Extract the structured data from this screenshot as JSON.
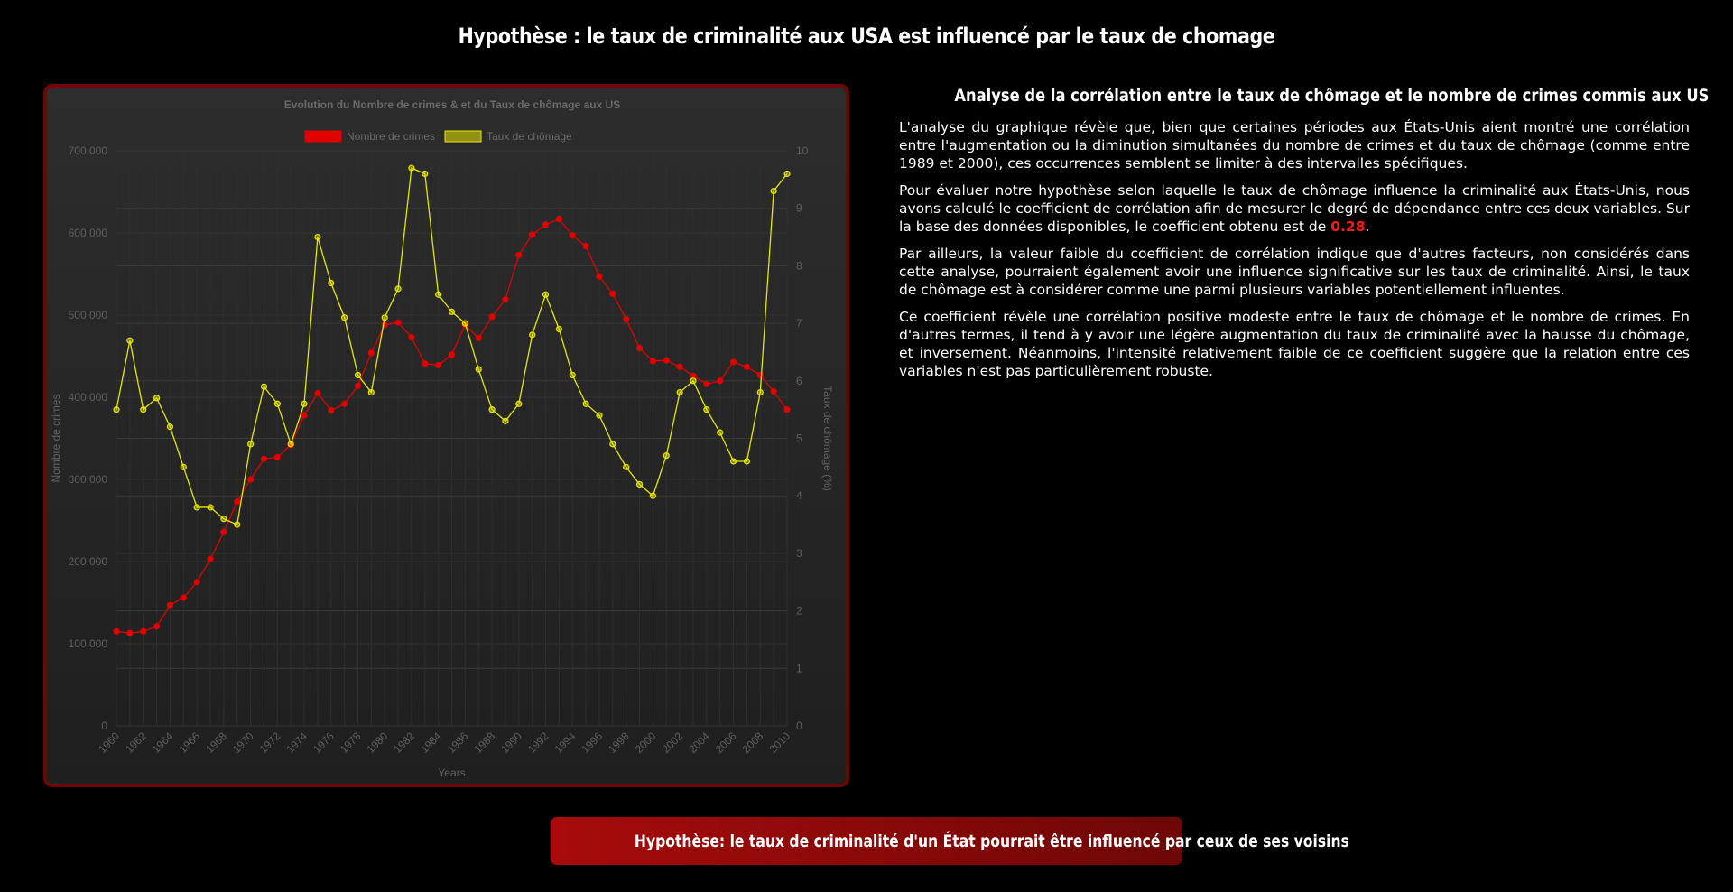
{
  "page": {
    "title": "Hypothèse : le taux de criminalité aux USA est influencé par le taux de chomage"
  },
  "analysis": {
    "title": "Analyse de la corrélation entre le taux de chômage et le nombre de crimes commis aux US",
    "p1": "L'analyse du graphique révèle que, bien que certaines périodes aux États-Unis aient montré une corrélation entre l'augmentation ou la diminution simultanées du nombre de crimes et du taux de chômage (comme entre 1989 et 2000), ces occurrences semblent se limiter à des intervalles spécifiques.",
    "p2_before": "Pour évaluer notre hypothèse selon laquelle le taux de chômage influence la criminalité aux États-Unis, nous avons calculé le coefficient de corrélation afin de mesurer le degré de dépendance entre ces deux variables. Sur la base des données disponibles, le coefficient obtenu est de ",
    "coefficient": "0.28",
    "p2_after": ".",
    "p3": "Par ailleurs, la valeur faible du coefficient de corrélation indique que d'autres facteurs, non considérés dans cette analyse, pourraient également avoir une influence significative sur les taux de criminalité. Ainsi, le taux de chômage est à considérer comme une parmi plusieurs variables potentiellement influentes.",
    "p4": "Ce coefficient révèle une corrélation positive modeste entre le taux de chômage et le nombre de crimes. En d'autres termes, il tend à y avoir une légère augmentation du taux de criminalité avec la hausse du chômage, et inversement. Néanmoins, l'intensité relativement faible de ce coefficient suggère que la relation entre ces variables n'est pas particulièrement robuste."
  },
  "next_hypothesis": {
    "label": "Hypothèse: le taux de criminalité d'un État pourrait être influencé par ceux de ses voisins"
  },
  "colors": {
    "crimes": "#e00000",
    "chomage": "#e6e600",
    "coefficient": "#ff1a1a",
    "card_border": "#6a0707"
  },
  "chart_data": {
    "type": "line",
    "title": "Evolution du Nombre de crimes & et du Taux de chômage aux US",
    "xlabel": "Years",
    "ylabel_left": "Nombre de crimes",
    "ylabel_right": "Taux de chômage (%)",
    "legend_position": "top",
    "grid": true,
    "x": [
      1960,
      1961,
      1962,
      1963,
      1964,
      1965,
      1966,
      1967,
      1968,
      1969,
      1970,
      1971,
      1972,
      1973,
      1974,
      1975,
      1976,
      1977,
      1978,
      1979,
      1980,
      1981,
      1982,
      1983,
      1984,
      1985,
      1986,
      1987,
      1988,
      1989,
      1990,
      1991,
      1992,
      1993,
      1994,
      1995,
      1996,
      1997,
      1998,
      1999,
      2000,
      2001,
      2002,
      2003,
      2004,
      2005,
      2006,
      2007,
      2008,
      2009,
      2010
    ],
    "x_tick_labels": [
      "1960",
      "1962",
      "1964",
      "1966",
      "1968",
      "1970",
      "1972",
      "1974",
      "1976",
      "1978",
      "1980",
      "1982",
      "1984",
      "1986",
      "1988",
      "1990",
      "1992",
      "1994",
      "1996",
      "1998",
      "2000",
      "2002",
      "2004",
      "2006",
      "2008",
      "2010"
    ],
    "y_left": {
      "ylim": [
        0,
        700000
      ],
      "ticks": [
        0,
        100000,
        200000,
        300000,
        400000,
        500000,
        600000,
        700000
      ],
      "tick_labels": [
        "0",
        "100,000",
        "200,000",
        "300,000",
        "400,000",
        "500,000",
        "600,000",
        "700,000"
      ]
    },
    "y_right": {
      "ylim": [
        0,
        10
      ],
      "ticks": [
        0,
        1,
        2,
        3,
        4,
        5,
        6,
        7,
        8,
        9,
        10
      ],
      "tick_labels": [
        "0",
        "1",
        "2",
        "3",
        "4",
        "5",
        "6",
        "7",
        "8",
        "9",
        "10"
      ]
    },
    "series": [
      {
        "name": "Nombre de crimes",
        "axis": "left",
        "color": "#e00000",
        "values": [
          115000,
          113000,
          115000,
          121000,
          147000,
          156000,
          175000,
          203000,
          236000,
          273000,
          300000,
          325000,
          327000,
          342000,
          378000,
          405000,
          384000,
          392000,
          414000,
          454000,
          488000,
          491000,
          473000,
          441000,
          439000,
          452000,
          488000,
          472000,
          498000,
          519000,
          573000,
          598000,
          610000,
          617000,
          597000,
          584000,
          547000,
          526000,
          495000,
          460000,
          444000,
          445000,
          437000,
          426000,
          416000,
          420000,
          443000,
          437000,
          427000,
          407000,
          385000
        ]
      },
      {
        "name": "Taux de chômage",
        "axis": "right",
        "color": "#e6e600",
        "values": [
          5.5,
          6.7,
          5.5,
          5.7,
          5.2,
          4.5,
          3.8,
          3.8,
          3.6,
          3.5,
          4.9,
          5.9,
          5.6,
          4.9,
          5.6,
          8.5,
          7.7,
          7.1,
          6.1,
          5.8,
          7.1,
          7.6,
          9.7,
          9.6,
          7.5,
          7.2,
          7.0,
          6.2,
          5.5,
          5.3,
          5.6,
          6.8,
          7.5,
          6.9,
          6.1,
          5.6,
          5.4,
          4.9,
          4.5,
          4.2,
          4.0,
          4.7,
          5.8,
          6.0,
          5.5,
          5.1,
          4.6,
          4.6,
          5.8,
          9.3,
          9.6
        ]
      }
    ]
  }
}
